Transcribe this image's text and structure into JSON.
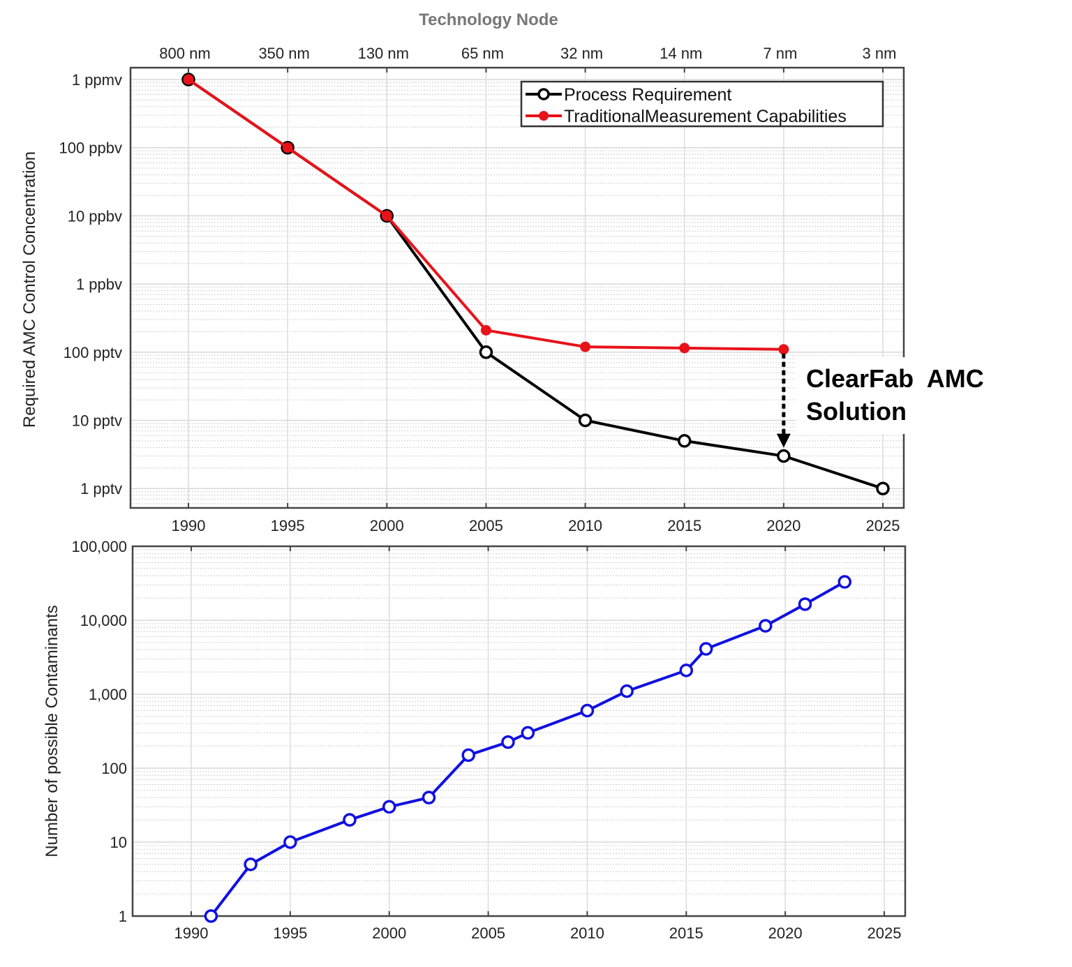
{
  "chart_data": [
    {
      "type": "line",
      "secondary_axis_title": "Technology Node",
      "secondary_x_ticks": [
        {
          "x": 1990,
          "label": "800 nm"
        },
        {
          "x": 1995,
          "label": "350 nm"
        },
        {
          "x": 2000,
          "label": "130 nm"
        },
        {
          "x": 2005,
          "label": "65 nm"
        },
        {
          "x": 2010,
          "label": "32 nm"
        },
        {
          "x": 2015,
          "label": "14 nm"
        },
        {
          "x": 2020,
          "label": "7 nm"
        },
        {
          "x": 2025,
          "label": "3 nm"
        }
      ],
      "ylabel": "Required AMC Control Concentration",
      "xlabel": "",
      "xlim": [
        1987,
        2026
      ],
      "x_ticks": [
        1990,
        1995,
        2000,
        2005,
        2010,
        2015,
        2020,
        2025
      ],
      "y_scale": "log",
      "ylim": [
        5e-13,
        1.3e-06
      ],
      "y_ticks": [
        {
          "value": 1e-06,
          "label": "1 ppmv"
        },
        {
          "value": 1e-07,
          "label": "100 ppbv"
        },
        {
          "value": 1e-08,
          "label": "10 ppbv"
        },
        {
          "value": 1e-09,
          "label": "1 ppbv"
        },
        {
          "value": 1e-10,
          "label": "100 pptv"
        },
        {
          "value": 1e-11,
          "label": "10 pptv"
        },
        {
          "value": 1e-12,
          "label": "1 pptv"
        }
      ],
      "grid": true,
      "legend_position": "top-right",
      "series": [
        {
          "name": "Process Requirement",
          "color": "#000000",
          "marker": "open-circle",
          "x": [
            1990,
            1995,
            2000,
            2005,
            2010,
            2015,
            2020,
            2025
          ],
          "y": [
            1e-06,
            1e-07,
            1e-08,
            1e-10,
            1e-11,
            5e-12,
            3e-12,
            1e-12
          ]
        },
        {
          "name": "TraditionalMeasurement Capabilities",
          "color": "#e8121a",
          "marker": "filled-circle",
          "x": [
            1990,
            1995,
            2000,
            2005,
            2010,
            2015,
            2020
          ],
          "y": [
            1e-06,
            1e-07,
            1e-08,
            2.1e-10,
            1.2e-10,
            1.15e-10,
            1.1e-10
          ]
        }
      ],
      "annotations": [
        {
          "text_line1": "ClearFab  AMC",
          "text_line2": "Solution",
          "arrow_x": 2020,
          "arrow_from": 1.1e-10,
          "arrow_to": 3e-12
        }
      ]
    },
    {
      "type": "line",
      "ylabel": "Number of possible Contaminants",
      "xlabel": "",
      "xlim": [
        1987,
        2026
      ],
      "x_ticks": [
        1990,
        1995,
        2000,
        2005,
        2010,
        2015,
        2020,
        2025
      ],
      "y_scale": "log",
      "ylim": [
        1,
        100000
      ],
      "y_ticks": [
        {
          "value": 100000,
          "label": "100,000"
        },
        {
          "value": 10000,
          "label": "10,000"
        },
        {
          "value": 1000,
          "label": "1,000"
        },
        {
          "value": 100,
          "label": "100"
        },
        {
          "value": 10,
          "label": "10"
        },
        {
          "value": 1,
          "label": "1"
        }
      ],
      "grid": true,
      "series": [
        {
          "color": "#1010e0",
          "marker": "open-circle",
          "x": [
            1991,
            1993,
            1995,
            1998,
            2000,
            2002,
            2004,
            2006,
            2007,
            2010,
            2012,
            2015,
            2016,
            2019,
            2021,
            2023
          ],
          "y": [
            1,
            5,
            10,
            20,
            30,
            40,
            150,
            225,
            300,
            600,
            1100,
            2100,
            4100,
            8400,
            16500,
            33000
          ]
        }
      ]
    }
  ]
}
